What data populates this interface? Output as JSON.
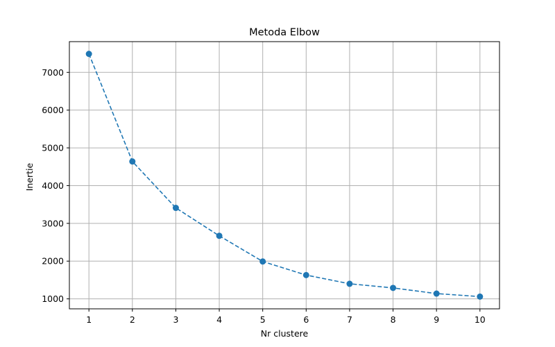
{
  "chart_data": {
    "type": "line",
    "title": "Metoda Elbow",
    "xlabel": "Nr clustere",
    "ylabel": "Inertie",
    "x": [
      1,
      2,
      3,
      4,
      5,
      6,
      7,
      8,
      9,
      10
    ],
    "series": [
      {
        "name": "Inertie",
        "values": [
          7490,
          4640,
          3410,
          2670,
          1990,
          1630,
          1400,
          1290,
          1140,
          1060
        ],
        "color": "#1f77b4",
        "line_style": "dashed",
        "marker": "circle"
      }
    ],
    "x_ticks": [
      1,
      2,
      3,
      4,
      5,
      6,
      7,
      8,
      9,
      10
    ],
    "x_tick_labels": [
      "1",
      "2",
      "3",
      "4",
      "5",
      "6",
      "7",
      "8",
      "9",
      "10"
    ],
    "y_ticks": [
      1000,
      2000,
      3000,
      4000,
      5000,
      6000,
      7000
    ],
    "y_tick_labels": [
      "1000",
      "2000",
      "3000",
      "4000",
      "5000",
      "6000",
      "7000"
    ],
    "xlim": [
      0.55,
      10.45
    ],
    "ylim": [
      736,
      7814
    ],
    "grid": true,
    "grid_color": "#b0b0b0",
    "legend": "none"
  }
}
